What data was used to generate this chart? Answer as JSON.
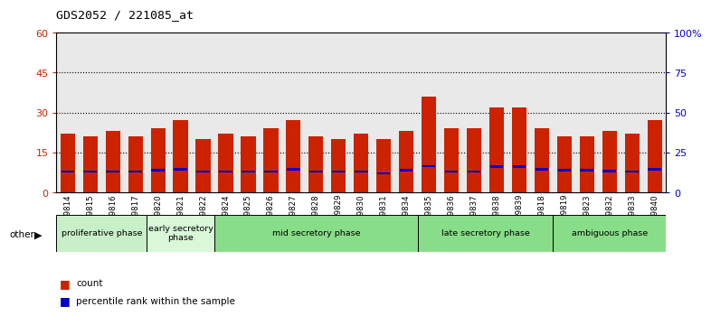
{
  "title": "GDS2052 / 221085_at",
  "samples": [
    "GSM109814",
    "GSM109815",
    "GSM109816",
    "GSM109817",
    "GSM109820",
    "GSM109821",
    "GSM109822",
    "GSM109824",
    "GSM109825",
    "GSM109826",
    "GSM109827",
    "GSM109828",
    "GSM109829",
    "GSM109830",
    "GSM109831",
    "GSM109834",
    "GSM109835",
    "GSM109836",
    "GSM109837",
    "GSM109838",
    "GSM109839",
    "GSM109818",
    "GSM109819",
    "GSM109823",
    "GSM109832",
    "GSM109833",
    "GSM109840"
  ],
  "count_values": [
    22,
    21,
    23,
    21,
    24,
    27,
    20,
    22,
    21,
    24,
    27,
    21,
    20,
    22,
    20,
    23,
    36,
    24,
    24,
    32,
    32,
    24,
    21,
    21,
    23,
    22,
    27
  ],
  "percentile_values": [
    13,
    13,
    13,
    13,
    14,
    14.5,
    13,
    13,
    13,
    13,
    14.5,
    13,
    13,
    13,
    12,
    14,
    16.5,
    13,
    13,
    16,
    16,
    14.5,
    14,
    14,
    13.5,
    13,
    14.5
  ],
  "phases": [
    {
      "label": "proliferative phase",
      "start": 0,
      "end": 4,
      "color": "#c8f0c8"
    },
    {
      "label": "early secretory\nphase",
      "start": 4,
      "end": 7,
      "color": "#d8f8d8"
    },
    {
      "label": "mid secretory phase",
      "start": 7,
      "end": 16,
      "color": "#88dd88"
    },
    {
      "label": "late secretory phase",
      "start": 16,
      "end": 22,
      "color": "#88dd88"
    },
    {
      "label": "ambiguous phase",
      "start": 22,
      "end": 27,
      "color": "#88dd88"
    }
  ],
  "ylim_left": [
    0,
    60
  ],
  "ylim_right": [
    0,
    100
  ],
  "yticks_left": [
    0,
    15,
    30,
    45,
    60
  ],
  "yticks_right": [
    0,
    25,
    50,
    75,
    100
  ],
  "bar_color": "#cc2200",
  "percentile_color": "#0000cc",
  "legend_count": "count",
  "legend_percentile": "percentile rank within the sample",
  "left_axis_color": "#cc2200",
  "right_axis_color": "#0000cc",
  "col_bg_color": "#d8d8d8"
}
